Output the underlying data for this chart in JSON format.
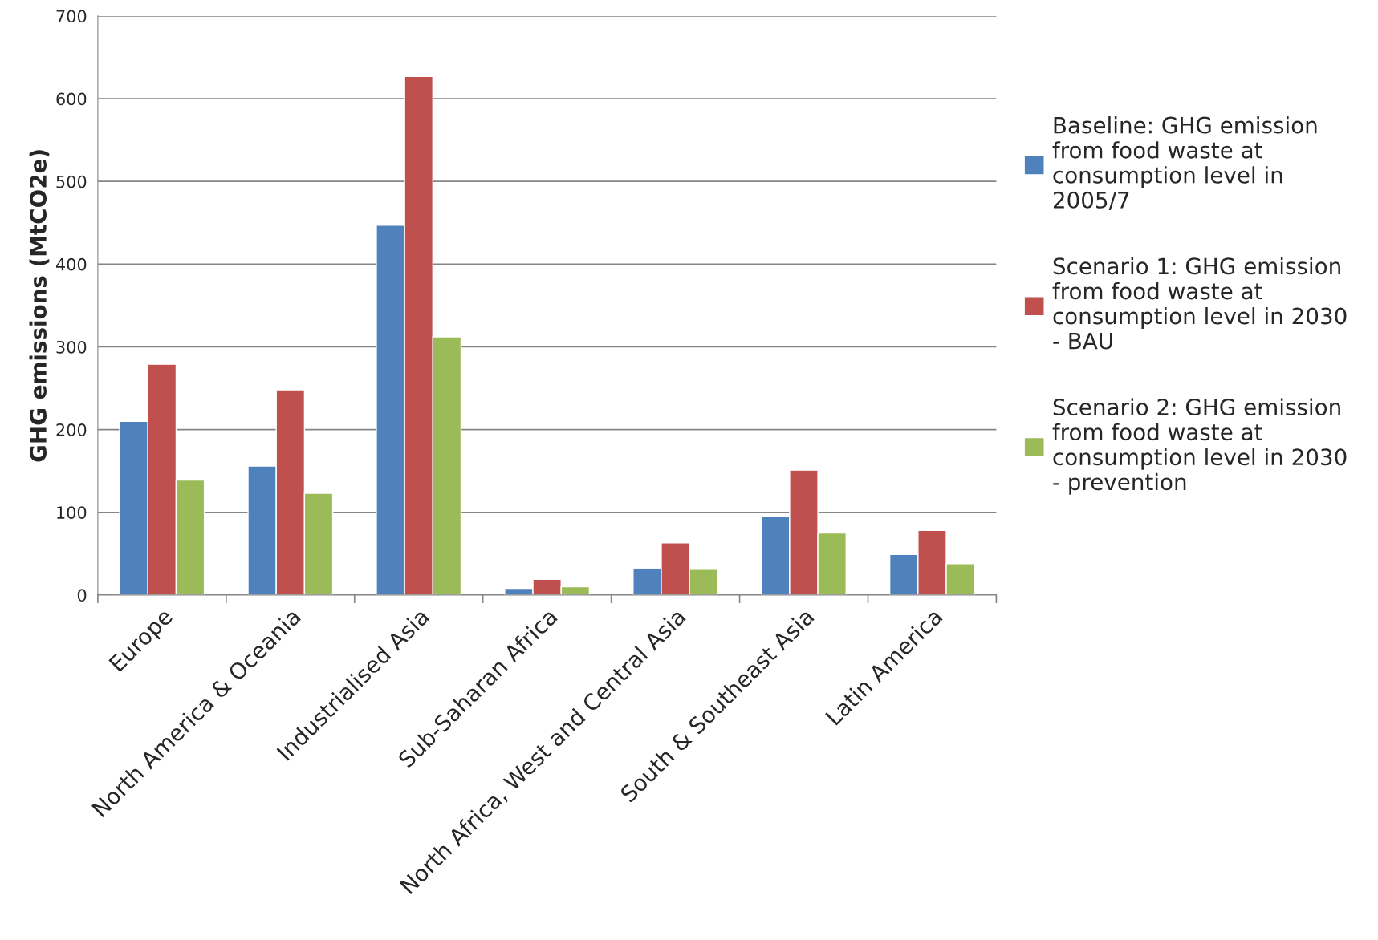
{
  "chart_data": {
    "type": "bar",
    "ylabel": "GHG emissions (MtCO2e)",
    "categories": [
      "Europe",
      "North America & Oceania",
      "Industrialised Asia",
      "Sub-Saharan Africa",
      "North Africa, West and Central Asia",
      "South & Southeast Asia",
      "Latin America"
    ],
    "series": [
      {
        "name": "Baseline: GHG emission from food waste at consumption level in 2005/7",
        "color": "#4f81bd",
        "values": [
          210,
          156,
          447,
          8,
          32,
          95,
          49
        ]
      },
      {
        "name": "Scenario 1: GHG emission from food waste at consumption level in 2030 - BAU",
        "color": "#c0504d",
        "values": [
          279,
          248,
          627,
          19,
          63,
          151,
          78
        ]
      },
      {
        "name": "Scenario 2: GHG emission from food waste at consumption level in 2030 - prevention",
        "color": "#9bbb59",
        "values": [
          139,
          123,
          312,
          10,
          31,
          75,
          38
        ]
      }
    ],
    "ylim": [
      0,
      700
    ],
    "yticks": [
      0,
      100,
      200,
      300,
      400,
      500,
      600,
      700
    ],
    "grid": "y",
    "legend": "right"
  }
}
